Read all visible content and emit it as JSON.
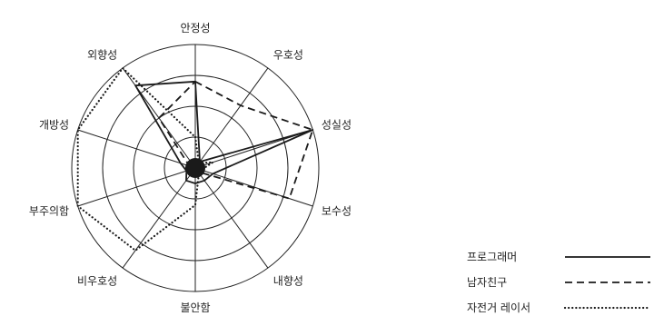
{
  "chart_data": {
    "type": "radar",
    "title": "",
    "axes": [
      "안정성",
      "우호성",
      "성실성",
      "보수성",
      "내향성",
      "불안함",
      "비우호성",
      "부주의함",
      "개방성",
      "외향성"
    ],
    "rlim": [
      0,
      4
    ],
    "rings": [
      1,
      2,
      3,
      4
    ],
    "grid": true,
    "legend_position": "bottom-right",
    "series": [
      {
        "name": "프로그래머",
        "style": "solid",
        "values": [
          2.8,
          0.25,
          4.0,
          0.6,
          0.5,
          0.5,
          0.5,
          0.3,
          0.5,
          3.3
        ]
      },
      {
        "name": "남자친구",
        "style": "dashed",
        "values": [
          2.8,
          2.5,
          4.0,
          3.2,
          0.15,
          0.15,
          0.2,
          0.15,
          0.2,
          2.0
        ]
      },
      {
        "name": "자전거 레이서",
        "style": "dotted",
        "values": [
          1.0,
          0.2,
          0.6,
          0.2,
          0.2,
          1.2,
          3.3,
          4.0,
          4.0,
          4.0
        ]
      }
    ],
    "center_marker": true,
    "colors": {
      "line": "#1a1a1a",
      "grid": "#222222",
      "text": "#222222"
    }
  }
}
